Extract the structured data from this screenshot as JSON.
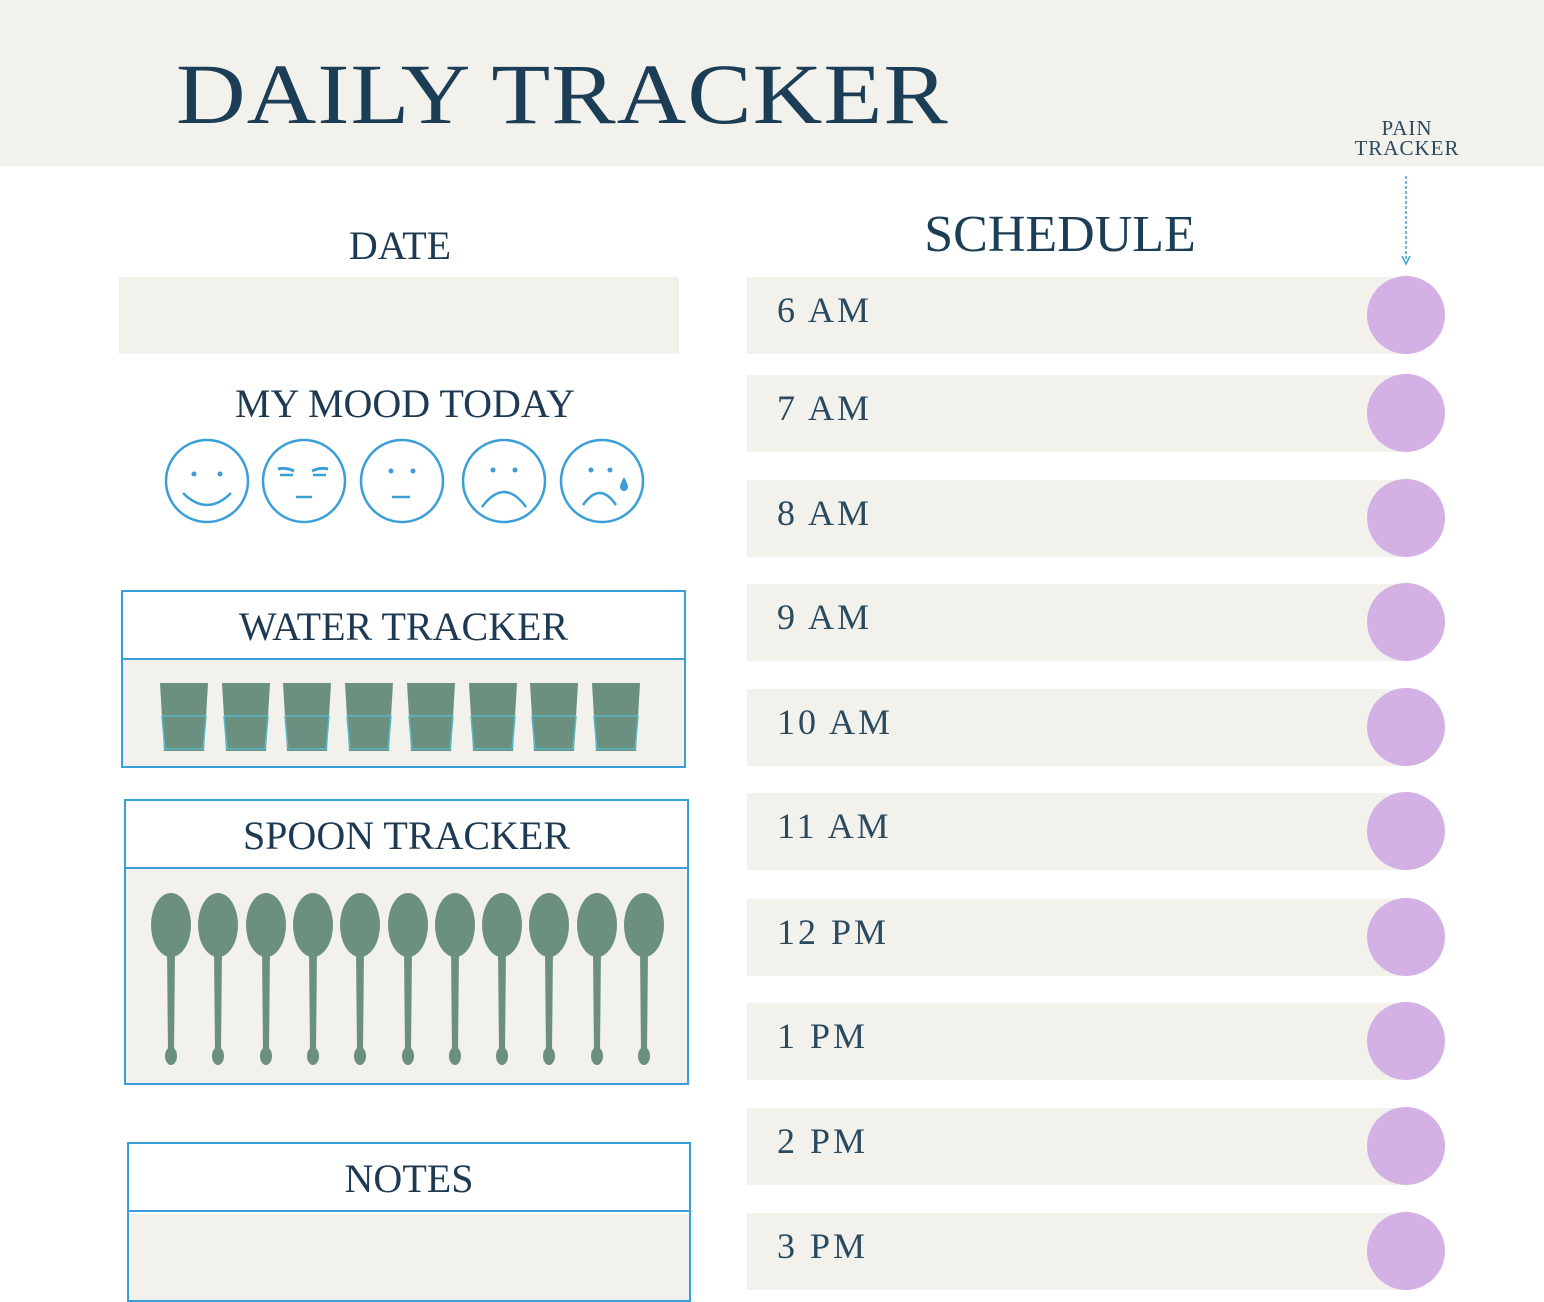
{
  "header": {
    "title": "DAILY TRACKER",
    "pain_tracker_label": [
      "PAIN",
      "TRACKER"
    ]
  },
  "date": {
    "label": "DATE",
    "value": ""
  },
  "mood": {
    "label": "MY MOOD TODAY",
    "faces": [
      "happy-face-icon",
      "annoyed-face-icon",
      "neutral-face-icon",
      "sad-face-icon",
      "crying-face-icon"
    ]
  },
  "water_tracker": {
    "label": "WATER TRACKER",
    "glasses": 8
  },
  "spoon_tracker": {
    "label": "SPOON TRACKER",
    "spoons": 11
  },
  "notes": {
    "label": "NOTES",
    "value": ""
  },
  "schedule": {
    "title": "SCHEDULE",
    "slots": [
      "6 AM",
      "7 AM",
      "8 AM",
      "9 AM",
      "10 AM",
      "11 AM",
      "12 PM",
      "1 PM",
      "2 PM",
      "3 PM"
    ]
  },
  "colors": {
    "band": "#f2f1ec",
    "accent_blue": "#3a9fd6",
    "title_navy": "#1c3d56",
    "icon_green": "#6b9080",
    "pain_dot": "#d4b1e4"
  }
}
